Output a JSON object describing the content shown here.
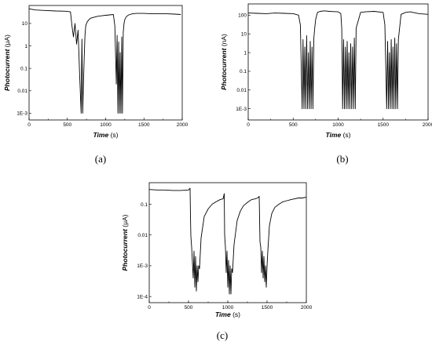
{
  "chart_data": [
    {
      "type": "line",
      "panel_label": "(a)",
      "xlabel": "Time",
      "xunit": "(s)",
      "ylabel": "Photocurrent",
      "yunit": "(μA)",
      "yscale": "log",
      "xlim": [
        0,
        2000
      ],
      "ylim_exp": [
        -3.3,
        1.8
      ],
      "xticks": [
        "0",
        "500",
        "1000",
        "1500",
        "2000"
      ],
      "yticks": [
        {
          "exp": 1,
          "label": "10"
        },
        {
          "exp": 0,
          "label": "1"
        },
        {
          "exp": -1,
          "label": "0.1"
        },
        {
          "exp": -2,
          "label": "0.01"
        },
        {
          "exp": -3,
          "label": "1E-3"
        }
      ],
      "series": [
        {
          "x": [
            0,
            80,
            200,
            350,
            480,
            540,
            560,
            580,
            600,
            620,
            640,
            660,
            680,
            690,
            700,
            710,
            720,
            730,
            740,
            760,
            800,
            850,
            900,
            950,
            1000,
            1050,
            1100,
            1120,
            1140,
            1150,
            1160,
            1170,
            1180,
            1190,
            1200,
            1210,
            1220,
            1230,
            1240,
            1250,
            1270,
            1300,
            1350,
            1400,
            1500,
            1600,
            1700,
            1800,
            1900,
            1980
          ],
          "y": [
            45,
            40,
            38,
            36,
            35,
            33,
            8,
            2.5,
            10,
            1.2,
            5,
            0.05,
            0.001,
            2,
            0.001,
            0.02,
            0.3,
            3,
            8,
            12,
            17,
            19,
            21,
            22,
            23,
            24,
            25,
            8,
            0.02,
            3,
            0.001,
            1.5,
            0.001,
            0.5,
            0.001,
            2.5,
            0.001,
            4,
            10,
            15,
            20,
            24,
            27,
            28,
            28,
            27,
            27,
            27,
            26,
            25
          ]
        }
      ]
    },
    {
      "type": "line",
      "panel_label": "(b)",
      "xlabel": "Time",
      "xunit": "(s)",
      "ylabel": "Photocurrent",
      "yunit": "(nA)",
      "yscale": "log",
      "xlim": [
        0,
        2000
      ],
      "ylim_exp": [
        -3.6,
        2.6
      ],
      "xticks": [
        "0",
        "500",
        "1000",
        "1500",
        "2000"
      ],
      "yticks": [
        {
          "exp": 2,
          "label": "100"
        },
        {
          "exp": 1,
          "label": "10"
        },
        {
          "exp": 0,
          "label": "1"
        },
        {
          "exp": -1,
          "label": "0.1"
        },
        {
          "exp": -2,
          "label": "0.01"
        },
        {
          "exp": -3,
          "label": "1E-3"
        }
      ],
      "series": [
        {
          "x": [
            0,
            100,
            200,
            300,
            400,
            500,
            560,
            580,
            600,
            610,
            620,
            630,
            640,
            650,
            660,
            670,
            680,
            690,
            700,
            710,
            720,
            730,
            740,
            750,
            770,
            800,
            850,
            900,
            950,
            1000,
            1030,
            1040,
            1050,
            1060,
            1070,
            1080,
            1090,
            1100,
            1110,
            1120,
            1130,
            1140,
            1150,
            1160,
            1170,
            1180,
            1190,
            1200,
            1250,
            1300,
            1400,
            1500,
            1520,
            1540,
            1550,
            1560,
            1570,
            1580,
            1590,
            1600,
            1610,
            1620,
            1630,
            1640,
            1650,
            1660,
            1670,
            1680,
            1690,
            1700,
            1750,
            1800,
            1900,
            2000
          ],
          "y": [
            130,
            125,
            120,
            130,
            125,
            120,
            100,
            30,
            0.001,
            5,
            0.001,
            2,
            0.001,
            8,
            0.001,
            1,
            0.001,
            4,
            0.001,
            2,
            0.001,
            6,
            20,
            60,
            140,
            160,
            170,
            160,
            155,
            150,
            120,
            20,
            0.001,
            5,
            0.001,
            2,
            0.001,
            4,
            0.001,
            1,
            0.001,
            3,
            0.001,
            2,
            0.001,
            6,
            0.001,
            20,
            140,
            150,
            160,
            140,
            30,
            0.001,
            4,
            0.001,
            1,
            0.001,
            5,
            0.001,
            2,
            0.001,
            6,
            0.001,
            3,
            0.001,
            5,
            15,
            40,
            110,
            140,
            150,
            120,
            110
          ]
        }
      ]
    },
    {
      "type": "line",
      "panel_label": "(c)",
      "xlabel": "Time",
      "xunit": "(s)",
      "ylabel": "Photocurrent",
      "yunit": "(μA)",
      "yscale": "log",
      "xlim": [
        0,
        2000
      ],
      "ylim_exp": [
        -4.2,
        -0.3
      ],
      "xticks": [
        "0",
        "500",
        "1000",
        "1500",
        "2000"
      ],
      "yticks": [
        {
          "exp": -1,
          "label": "0.1"
        },
        {
          "exp": -2,
          "label": "0.01"
        },
        {
          "exp": -3,
          "label": "1E-3"
        },
        {
          "exp": -4,
          "label": "1E-4"
        }
      ],
      "series": [
        {
          "x": [
            0,
            100,
            200,
            300,
            400,
            500,
            520,
            525,
            530,
            540,
            560,
            570,
            580,
            590,
            600,
            610,
            620,
            630,
            640,
            660,
            700,
            750,
            800,
            850,
            900,
            940,
            955,
            960,
            970,
            980,
            990,
            1000,
            1010,
            1020,
            1030,
            1040,
            1050,
            1060,
            1080,
            1120,
            1160,
            1200,
            1260,
            1300,
            1350,
            1380,
            1400,
            1410,
            1420,
            1430,
            1440,
            1450,
            1460,
            1470,
            1480,
            1490,
            1500,
            1510,
            1530,
            1560,
            1600,
            1650,
            1700,
            1750,
            1800,
            1850,
            1900,
            1950,
            2000
          ],
          "y": [
            0.3,
            0.29,
            0.29,
            0.28,
            0.28,
            0.29,
            0.33,
            0.04,
            0.009,
            0.004,
            0.0004,
            0.003,
            0.0002,
            0.002,
            0.00015,
            0.001,
            0.0003,
            0.001,
            0.0008,
            0.008,
            0.04,
            0.07,
            0.1,
            0.12,
            0.14,
            0.15,
            0.22,
            0.01,
            0.004,
            0.0006,
            0.003,
            0.0002,
            0.0015,
            0.00012,
            0.001,
            0.00012,
            0.0008,
            0.0006,
            0.005,
            0.03,
            0.06,
            0.09,
            0.12,
            0.14,
            0.15,
            0.16,
            0.18,
            0.006,
            0.004,
            0.0006,
            0.003,
            0.0004,
            0.002,
            0.0003,
            0.001,
            0.0002,
            0.001,
            0.003,
            0.02,
            0.05,
            0.08,
            0.1,
            0.12,
            0.13,
            0.14,
            0.15,
            0.16,
            0.16,
            0.17
          ]
        }
      ]
    }
  ]
}
